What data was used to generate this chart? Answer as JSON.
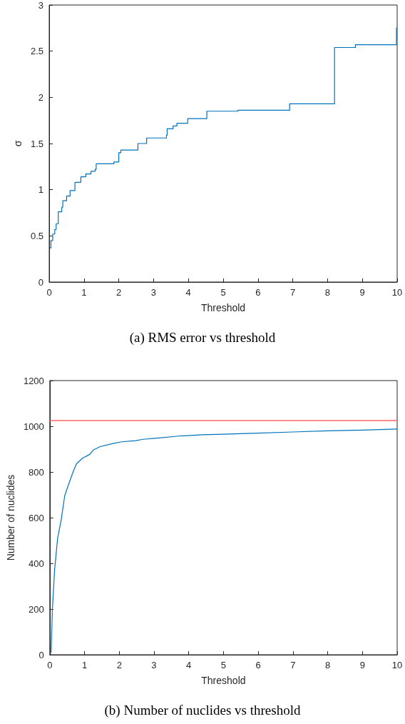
{
  "chart_data": [
    {
      "type": "step",
      "title": "(a) RMS error vs threshold",
      "xlabel": "Threshold",
      "ylabel": "σ",
      "xlim": [
        0,
        10
      ],
      "xticks": [
        0,
        1,
        2,
        3,
        4,
        5,
        6,
        7,
        8,
        9,
        10
      ],
      "ylim": [
        0,
        3
      ],
      "yticks": [
        0,
        0.5,
        1,
        1.5,
        2,
        2.5,
        3
      ],
      "series": [
        {
          "color": "#0072bd",
          "x": [
            0.02,
            0.05,
            0.1,
            0.16,
            0.2,
            0.26,
            0.36,
            0.39,
            0.5,
            0.6,
            0.74,
            0.91,
            1.05,
            1.2,
            1.32,
            1.35,
            1.86,
            2.0,
            2.06,
            2.55,
            2.8,
            3.37,
            3.39,
            3.56,
            3.67,
            3.98,
            4.53,
            5.42,
            6.91,
            8.2,
            8.8,
            9.98,
            10
          ],
          "values": [
            0.37,
            0.45,
            0.52,
            0.57,
            0.63,
            0.76,
            0.81,
            0.88,
            0.93,
            0.99,
            1.08,
            1.14,
            1.17,
            1.2,
            1.22,
            1.28,
            1.3,
            1.4,
            1.43,
            1.5,
            1.56,
            1.59,
            1.66,
            1.69,
            1.72,
            1.77,
            1.85,
            1.86,
            1.93,
            2.54,
            2.57,
            2.75,
            2.75
          ]
        }
      ]
    },
    {
      "type": "line",
      "title": "(b) Number of nuclides vs threshold",
      "xlabel": "Threshold",
      "ylabel": "Number of nuclides",
      "xlim": [
        0,
        10
      ],
      "xticks": [
        0,
        1,
        2,
        3,
        4,
        5,
        6,
        7,
        8,
        9,
        10
      ],
      "ylim": [
        0,
        1200
      ],
      "yticks": [
        0,
        200,
        400,
        600,
        800,
        1000,
        1200
      ],
      "ref_lines": [
        {
          "axis": "y",
          "value": 1025,
          "color": "#ff6666"
        }
      ],
      "series": [
        {
          "color": "#0072bd",
          "x": [
            0.02,
            0.04,
            0.075,
            0.14,
            0.225,
            0.33,
            0.43,
            0.57,
            0.67,
            0.77,
            0.94,
            1.15,
            1.25,
            1.45,
            1.8,
            2.07,
            2.48,
            2.68,
            3.03,
            3.71,
            4.39,
            5,
            6,
            7,
            8,
            9,
            10
          ],
          "values": [
            5,
            16,
            197,
            374,
            509,
            592,
            696,
            758,
            800,
            836,
            860,
            877,
            896,
            911,
            924,
            932,
            937,
            943,
            947,
            957,
            963,
            965,
            970,
            975,
            980,
            983,
            988
          ]
        }
      ]
    }
  ]
}
